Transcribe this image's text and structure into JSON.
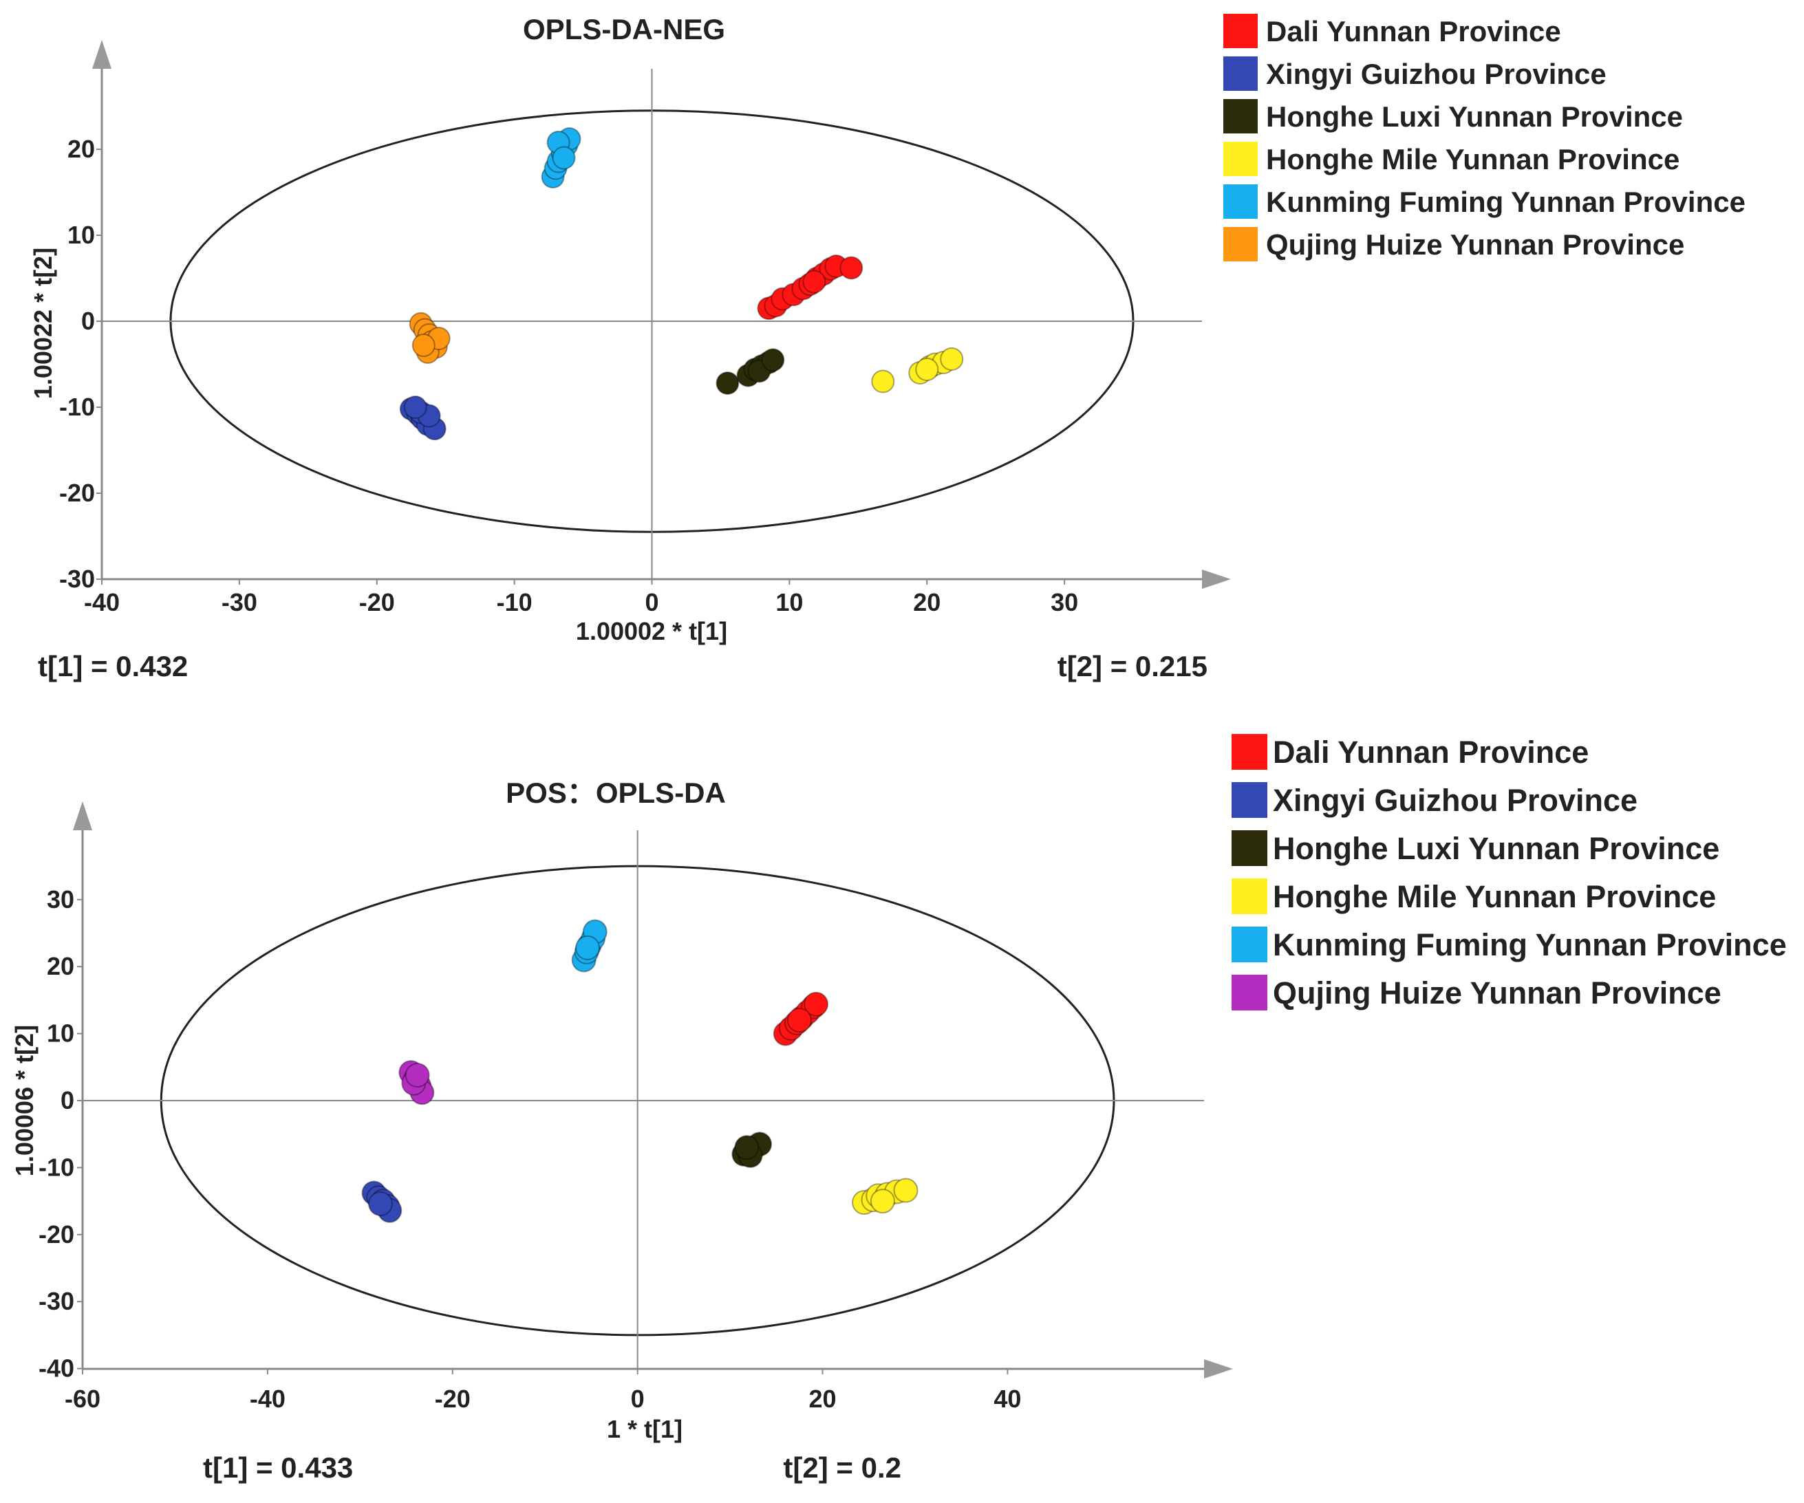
{
  "chart_data": [
    {
      "type": "scatter",
      "title": "OPLS-DA-NEG",
      "xlabel": "1.00002 * t[1]",
      "ylabel": "1.00022 * t[2]",
      "xlim": [
        -40,
        40
      ],
      "ylim": [
        -30,
        30
      ],
      "xticks": [
        -40,
        -30,
        -20,
        -10,
        0,
        10,
        20,
        30
      ],
      "yticks": [
        -30,
        -20,
        -10,
        0,
        10,
        20
      ],
      "stats": {
        "left": "t[1] = 0.432",
        "right": "t[2] = 0.215"
      },
      "ellipse": {
        "cx": 0,
        "cy": 0,
        "rx": 35,
        "ry": 24.5
      },
      "legend_position": "right",
      "series": [
        {
          "name": "Dali Yunnan Province",
          "color": "#ff1414",
          "points": [
            [
              8.5,
              1.5
            ],
            [
              9.0,
              1.8
            ],
            [
              9.5,
              2.6
            ],
            [
              10.3,
              3.1
            ],
            [
              11.0,
              3.8
            ],
            [
              11.5,
              4.3
            ],
            [
              12.0,
              5.0
            ],
            [
              12.5,
              5.5
            ],
            [
              13.0,
              6.1
            ],
            [
              13.4,
              6.4
            ],
            [
              14.5,
              6.2
            ],
            [
              11.8,
              4.6
            ]
          ]
        },
        {
          "name": "Xingyi Guizhou Province",
          "color": "#3347b5",
          "points": [
            [
              -17.5,
              -10.2
            ],
            [
              -17.0,
              -10.8
            ],
            [
              -16.7,
              -11.3
            ],
            [
              -16.3,
              -12.0
            ],
            [
              -15.8,
              -12.5
            ],
            [
              -16.8,
              -10.6
            ],
            [
              -16.2,
              -11.0
            ],
            [
              -17.2,
              -10.0
            ]
          ]
        },
        {
          "name": "Honghe Luxi Yunnan Province",
          "color": "#2c2c0a",
          "points": [
            [
              5.5,
              -7.2
            ],
            [
              7.0,
              -6.3
            ],
            [
              7.5,
              -5.6
            ],
            [
              8.0,
              -5.2
            ],
            [
              8.5,
              -4.8
            ],
            [
              7.8,
              -5.8
            ],
            [
              8.8,
              -4.5
            ]
          ]
        },
        {
          "name": "Honghe Mile Yunnan Province",
          "color": "#ffef1f",
          "points": [
            [
              16.8,
              -7.0
            ],
            [
              19.5,
              -6.0
            ],
            [
              20.2,
              -5.3
            ],
            [
              20.6,
              -5.0
            ],
            [
              21.2,
              -4.8
            ],
            [
              21.8,
              -4.4
            ],
            [
              20.0,
              -5.6
            ]
          ]
        },
        {
          "name": "Kunming Fuming Yunnan Province",
          "color": "#18aef0",
          "points": [
            [
              -7.2,
              16.8
            ],
            [
              -7.0,
              17.8
            ],
            [
              -6.8,
              18.6
            ],
            [
              -6.5,
              19.6
            ],
            [
              -6.2,
              20.5
            ],
            [
              -6.0,
              21.2
            ],
            [
              -6.8,
              20.8
            ],
            [
              -6.4,
              19.0
            ]
          ]
        },
        {
          "name": "Qujing Huize Yunnan Province",
          "color": "#ff9610",
          "points": [
            [
              -16.8,
              -0.3
            ],
            [
              -16.5,
              -1.0
            ],
            [
              -16.2,
              -1.6
            ],
            [
              -16.0,
              -2.4
            ],
            [
              -15.7,
              -3.0
            ],
            [
              -16.3,
              -3.6
            ],
            [
              -15.5,
              -2.0
            ],
            [
              -16.6,
              -2.8
            ]
          ]
        }
      ]
    },
    {
      "type": "scatter",
      "title": "POS：OPLS-DA",
      "xlabel": "1 * t[1]",
      "ylabel": "1.00006 * t[2]",
      "xlim": [
        -60,
        60
      ],
      "ylim": [
        -40,
        40
      ],
      "xticks": [
        -60,
        -40,
        -20,
        0,
        20,
        40
      ],
      "yticks": [
        -40,
        -30,
        -20,
        -10,
        0,
        10,
        20,
        30
      ],
      "stats": {
        "left": "t[1] = 0.433",
        "right": "t[2] = 0.2"
      },
      "ellipse": {
        "cx": 0,
        "cy": 0,
        "rx": 51.5,
        "ry": 35
      },
      "legend_position": "right",
      "series": [
        {
          "name": "Dali  Yunnan Province",
          "color": "#ff1414",
          "points": [
            [
              16.0,
              10.0
            ],
            [
              16.6,
              10.8
            ],
            [
              17.2,
              11.6
            ],
            [
              17.8,
              12.4
            ],
            [
              18.4,
              13.2
            ],
            [
              19.0,
              14.0
            ],
            [
              19.3,
              14.4
            ],
            [
              17.5,
              12.0
            ]
          ]
        },
        {
          "name": "Xingyi  Guizhou Province",
          "color": "#3347b5",
          "points": [
            [
              -28.5,
              -13.8
            ],
            [
              -28.0,
              -14.5
            ],
            [
              -27.5,
              -15.0
            ],
            [
              -27.0,
              -15.8
            ],
            [
              -26.8,
              -16.4
            ],
            [
              -27.8,
              -15.4
            ]
          ]
        },
        {
          "name": "Honghe Luxi Yunnan Province",
          "color": "#2c2c0a",
          "points": [
            [
              11.5,
              -8.0
            ],
            [
              12.0,
              -7.5
            ],
            [
              12.6,
              -7.0
            ],
            [
              13.2,
              -6.5
            ],
            [
              12.2,
              -8.2
            ],
            [
              11.8,
              -7.0
            ]
          ]
        },
        {
          "name": "Honghe Mile Yunnan Province",
          "color": "#ffef1f",
          "points": [
            [
              24.5,
              -15.2
            ],
            [
              25.5,
              -14.8
            ],
            [
              26.0,
              -14.2
            ],
            [
              27.0,
              -14.0
            ],
            [
              28.0,
              -13.6
            ],
            [
              29.0,
              -13.4
            ],
            [
              26.5,
              -15.0
            ]
          ]
        },
        {
          "name": "Kunming Fuming Yunnan Province",
          "color": "#18aef0",
          "points": [
            [
              -5.8,
              21.0
            ],
            [
              -5.5,
              22.2
            ],
            [
              -5.2,
              23.2
            ],
            [
              -4.8,
              24.2
            ],
            [
              -4.6,
              25.2
            ],
            [
              -5.4,
              22.8
            ]
          ]
        },
        {
          "name": "Qujing Huize Yunnan Province",
          "color": "#b32dc1",
          "points": [
            [
              -24.5,
              4.2
            ],
            [
              -24.0,
              3.2
            ],
            [
              -23.6,
              2.2
            ],
            [
              -23.3,
              1.2
            ],
            [
              -24.2,
              2.6
            ],
            [
              -23.8,
              3.8
            ]
          ]
        }
      ]
    }
  ]
}
